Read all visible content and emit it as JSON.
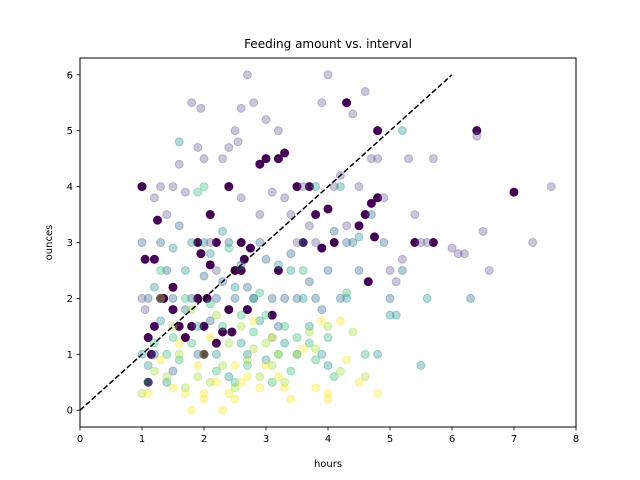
{
  "chart_data": {
    "type": "scatter",
    "title": "Feeding amount vs. interval",
    "xlabel": "hours",
    "ylabel": "ounces",
    "xlim": [
      0,
      8
    ],
    "ylim": [
      -0.3,
      6.3
    ],
    "x_ticks": [
      "0",
      "1",
      "2",
      "3",
      "4",
      "5",
      "6",
      "7",
      "8"
    ],
    "y_ticks": [
      "0",
      "1",
      "2",
      "3",
      "4",
      "5",
      "6"
    ],
    "grid": false,
    "colors": {
      "dark_purple": "#440154",
      "purple_gray": "#6b5a96",
      "teal_blue": "#31688e",
      "teal": "#21918c",
      "green": "#35b779",
      "yellow_green": "#a0da39",
      "yellow": "#fde725",
      "reference_line": "#000000"
    },
    "reference_line": {
      "style": "dashed",
      "x": [
        0,
        6
      ],
      "y": [
        0,
        6
      ]
    },
    "series": [
      {
        "color_key": "dark_purple",
        "alpha": 1.0,
        "points": [
          [
            1.0,
            4.0
          ],
          [
            1.05,
            2.7
          ],
          [
            1.1,
            0.5
          ],
          [
            1.15,
            1.0
          ],
          [
            1.2,
            2.7
          ],
          [
            1.2,
            1.5
          ],
          [
            1.1,
            1.3
          ],
          [
            1.25,
            3.4
          ],
          [
            1.3,
            2.0
          ],
          [
            1.35,
            2.0
          ],
          [
            1.5,
            1.8
          ],
          [
            1.5,
            2.2
          ],
          [
            1.6,
            1.5
          ],
          [
            1.7,
            1.3
          ],
          [
            1.8,
            1.5
          ],
          [
            1.9,
            2.0
          ],
          [
            1.9,
            3.0
          ],
          [
            1.95,
            2.8
          ],
          [
            2.0,
            1.5
          ],
          [
            2.0,
            1.0
          ],
          [
            2.05,
            2.0
          ],
          [
            2.1,
            2.6
          ],
          [
            2.1,
            3.5
          ],
          [
            2.2,
            1.2
          ],
          [
            2.3,
            1.4
          ],
          [
            2.2,
            3.0
          ],
          [
            2.4,
            1.8
          ],
          [
            2.4,
            4.0
          ],
          [
            2.45,
            1.4
          ],
          [
            2.5,
            2.5
          ],
          [
            2.6,
            2.5
          ],
          [
            2.6,
            3.0
          ],
          [
            2.65,
            2.7
          ],
          [
            2.7,
            1.8
          ],
          [
            2.75,
            2.9
          ],
          [
            2.9,
            4.4
          ],
          [
            3.0,
            4.5
          ],
          [
            3.1,
            1.7
          ],
          [
            3.2,
            2.5
          ],
          [
            3.2,
            4.5
          ],
          [
            3.3,
            4.6
          ],
          [
            3.5,
            4.0
          ],
          [
            3.6,
            3.0
          ],
          [
            3.7,
            4.0
          ],
          [
            3.8,
            3.5
          ],
          [
            3.9,
            2.9
          ],
          [
            4.0,
            3.6
          ],
          [
            4.1,
            3.0
          ],
          [
            4.3,
            5.5
          ],
          [
            4.5,
            3.3
          ],
          [
            4.6,
            3.5
          ],
          [
            4.65,
            2.3
          ],
          [
            4.7,
            3.7
          ],
          [
            4.75,
            3.1
          ],
          [
            4.8,
            5.0
          ],
          [
            4.8,
            3.8
          ],
          [
            5.4,
            3.0
          ],
          [
            5.7,
            3.0
          ],
          [
            6.4,
            5.0
          ],
          [
            7.0,
            3.9
          ]
        ]
      },
      {
        "color_key": "purple_gray",
        "alpha": 0.35,
        "points": [
          [
            1.0,
            2.0
          ],
          [
            1.05,
            1.8
          ],
          [
            1.2,
            3.8
          ],
          [
            1.3,
            4.0
          ],
          [
            1.4,
            3.5
          ],
          [
            1.5,
            4.0
          ],
          [
            1.6,
            4.4
          ],
          [
            1.7,
            3.9
          ],
          [
            1.8,
            5.5
          ],
          [
            1.9,
            4.7
          ],
          [
            1.95,
            5.4
          ],
          [
            2.0,
            4.5
          ],
          [
            2.1,
            3.0
          ],
          [
            2.2,
            2.5
          ],
          [
            2.3,
            4.5
          ],
          [
            2.4,
            4.7
          ],
          [
            2.5,
            5.0
          ],
          [
            2.55,
            4.8
          ],
          [
            2.6,
            3.8
          ],
          [
            2.6,
            5.4
          ],
          [
            2.7,
            6.0
          ],
          [
            2.8,
            5.5
          ],
          [
            2.9,
            3.5
          ],
          [
            3.0,
            5.2
          ],
          [
            3.1,
            3.9
          ],
          [
            3.2,
            5.0
          ],
          [
            3.3,
            3.8
          ],
          [
            3.4,
            3.5
          ],
          [
            3.5,
            3.0
          ],
          [
            3.6,
            4.0
          ],
          [
            3.7,
            3.3
          ],
          [
            3.8,
            3.0
          ],
          [
            3.9,
            5.5
          ],
          [
            4.0,
            6.0
          ],
          [
            4.1,
            4.0
          ],
          [
            4.2,
            4.2
          ],
          [
            4.3,
            3.3
          ],
          [
            4.4,
            5.3
          ],
          [
            4.5,
            4.0
          ],
          [
            4.6,
            5.7
          ],
          [
            4.7,
            4.5
          ],
          [
            4.8,
            4.5
          ],
          [
            4.9,
            3.8
          ],
          [
            5.0,
            2.5
          ],
          [
            5.1,
            2.3
          ],
          [
            5.2,
            2.7
          ],
          [
            5.3,
            4.5
          ],
          [
            5.4,
            3.5
          ],
          [
            5.5,
            3.0
          ],
          [
            5.6,
            3.0
          ],
          [
            5.7,
            4.5
          ],
          [
            6.0,
            2.9
          ],
          [
            6.1,
            2.8
          ],
          [
            6.2,
            2.8
          ],
          [
            6.4,
            4.9
          ],
          [
            6.5,
            3.2
          ],
          [
            6.6,
            2.5
          ],
          [
            7.3,
            3.0
          ],
          [
            7.6,
            4.0
          ]
        ]
      },
      {
        "color_key": "teal_blue",
        "alpha": 0.35,
        "points": [
          [
            1.0,
            3.0
          ],
          [
            1.1,
            2.0
          ],
          [
            1.2,
            1.0
          ],
          [
            1.3,
            3.0
          ],
          [
            1.4,
            2.5
          ],
          [
            1.5,
            2.0
          ],
          [
            1.5,
            0.7
          ],
          [
            1.6,
            3.3
          ],
          [
            1.7,
            1.8
          ],
          [
            1.8,
            2.0
          ],
          [
            1.9,
            1.0
          ],
          [
            2.0,
            2.4
          ],
          [
            2.1,
            1.6
          ],
          [
            2.2,
            2.0
          ],
          [
            2.3,
            2.3
          ],
          [
            2.4,
            3.0
          ],
          [
            2.5,
            2.0
          ],
          [
            2.6,
            2.6
          ],
          [
            2.7,
            2.2
          ],
          [
            2.8,
            2.0
          ],
          [
            2.9,
            3.0
          ],
          [
            3.0,
            2.7
          ],
          [
            3.1,
            2.0
          ],
          [
            3.2,
            1.5
          ],
          [
            3.3,
            2.0
          ],
          [
            3.4,
            2.8
          ],
          [
            3.5,
            2.0
          ],
          [
            3.6,
            3.0
          ],
          [
            3.7,
            2.3
          ],
          [
            3.8,
            2.0
          ],
          [
            3.9,
            1.8
          ],
          [
            4.0,
            2.5
          ],
          [
            4.1,
            3.2
          ],
          [
            4.2,
            2.0
          ],
          [
            4.3,
            3.0
          ],
          [
            4.4,
            3.0
          ],
          [
            4.5,
            2.5
          ],
          [
            4.7,
            3.5
          ],
          [
            4.9,
            3.0
          ],
          [
            5.0,
            2.0
          ],
          [
            5.2,
            2.5
          ],
          [
            6.3,
            2.0
          ]
        ]
      },
      {
        "color_key": "teal",
        "alpha": 0.35,
        "points": [
          [
            1.0,
            1.0
          ],
          [
            1.1,
            0.8
          ],
          [
            1.2,
            2.2
          ],
          [
            1.3,
            1.6
          ],
          [
            1.4,
            0.5
          ],
          [
            1.5,
            2.9
          ],
          [
            1.6,
            4.8
          ],
          [
            1.7,
            2.5
          ],
          [
            1.8,
            3.0
          ],
          [
            1.9,
            1.5
          ],
          [
            2.0,
            3.0
          ],
          [
            2.1,
            2.8
          ],
          [
            2.2,
            1.0
          ],
          [
            2.3,
            3.2
          ],
          [
            2.4,
            0.6
          ],
          [
            2.5,
            2.2
          ],
          [
            2.6,
            1.2
          ],
          [
            2.7,
            1.0
          ],
          [
            2.8,
            2.0
          ],
          [
            2.9,
            1.6
          ],
          [
            3.0,
            0.9
          ],
          [
            3.1,
            1.3
          ],
          [
            3.2,
            2.6
          ],
          [
            3.3,
            1.2
          ],
          [
            3.4,
            2.5
          ],
          [
            3.5,
            1.0
          ],
          [
            3.6,
            2.0
          ],
          [
            3.7,
            1.5
          ],
          [
            3.8,
            4.0
          ],
          [
            3.9,
            1.0
          ],
          [
            4.0,
            0.8
          ],
          [
            4.2,
            4.0
          ],
          [
            4.3,
            2.0
          ],
          [
            4.5,
            3.1
          ],
          [
            4.8,
            1.0
          ],
          [
            5.0,
            1.7
          ],
          [
            5.1,
            1.7
          ],
          [
            5.2,
            5.0
          ],
          [
            5.5,
            0.8
          ],
          [
            5.6,
            2.0
          ]
        ]
      },
      {
        "color_key": "green",
        "alpha": 0.35,
        "points": [
          [
            1.1,
            0.5
          ],
          [
            1.2,
            1.2
          ],
          [
            1.3,
            2.5
          ],
          [
            1.4,
            1.0
          ],
          [
            1.5,
            1.3
          ],
          [
            1.6,
            0.9
          ],
          [
            1.7,
            2.0
          ],
          [
            1.8,
            1.2
          ],
          [
            1.9,
            3.9
          ],
          [
            2.0,
            4.0
          ],
          [
            2.1,
            1.9
          ],
          [
            2.2,
            0.7
          ],
          [
            2.3,
            1.5
          ],
          [
            2.4,
            2.9
          ],
          [
            2.5,
            0.5
          ],
          [
            2.6,
            1.7
          ],
          [
            2.7,
            0.8
          ],
          [
            2.8,
            1.4
          ],
          [
            2.9,
            2.1
          ],
          [
            3.0,
            1.7
          ],
          [
            3.1,
            0.5
          ],
          [
            3.2,
            1.0
          ],
          [
            3.3,
            1.5
          ],
          [
            3.4,
            0.7
          ],
          [
            3.5,
            1.3
          ],
          [
            3.6,
            2.5
          ],
          [
            3.7,
            1.2
          ],
          [
            3.8,
            0.9
          ],
          [
            4.0,
            1.3
          ],
          [
            4.1,
            0.6
          ],
          [
            4.3,
            2.1
          ],
          [
            4.6,
            1.0
          ]
        ]
      },
      {
        "color_key": "yellow_green",
        "alpha": 0.35,
        "points": [
          [
            1.0,
            0.3
          ],
          [
            1.2,
            0.7
          ],
          [
            1.3,
            2.0
          ],
          [
            1.4,
            0.6
          ],
          [
            1.5,
            1.5
          ],
          [
            1.6,
            1.0
          ],
          [
            1.7,
            0.4
          ],
          [
            1.8,
            1.8
          ],
          [
            1.9,
            0.6
          ],
          [
            2.0,
            1.0
          ],
          [
            2.1,
            0.5
          ],
          [
            2.2,
            1.7
          ],
          [
            2.3,
            0.8
          ],
          [
            2.4,
            1.2
          ],
          [
            2.5,
            0.4
          ],
          [
            2.6,
            1.5
          ],
          [
            2.7,
            0.9
          ],
          [
            2.8,
            1.1
          ],
          [
            2.9,
            0.6
          ],
          [
            3.0,
            1.2
          ],
          [
            3.1,
            0.8
          ],
          [
            3.2,
            1.0
          ],
          [
            3.3,
            0.5
          ],
          [
            3.5,
            1.0
          ],
          [
            3.7,
            1.4
          ],
          [
            3.8,
            1.1
          ],
          [
            4.0,
            1.5
          ],
          [
            4.2,
            0.7
          ],
          [
            4.4,
            1.4
          ],
          [
            4.6,
            0.6
          ]
        ]
      },
      {
        "color_key": "yellow",
        "alpha": 0.35,
        "points": [
          [
            1.1,
            0.3
          ],
          [
            1.3,
            0.9
          ],
          [
            1.5,
            0.4
          ],
          [
            1.6,
            1.2
          ],
          [
            1.7,
            0.3
          ],
          [
            1.8,
            0.0
          ],
          [
            1.9,
            0.8
          ],
          [
            2.0,
            0.3
          ],
          [
            2.0,
            0.2
          ],
          [
            2.1,
            1.3
          ],
          [
            2.2,
            0.5
          ],
          [
            2.3,
            0.0
          ],
          [
            2.4,
            0.3
          ],
          [
            2.5,
            0.8
          ],
          [
            2.5,
            0.2
          ],
          [
            2.6,
            0.5
          ],
          [
            2.7,
            0.6
          ],
          [
            2.8,
            1.6
          ],
          [
            2.9,
            0.4
          ],
          [
            3.0,
            0.8
          ],
          [
            3.1,
            1.3
          ],
          [
            3.2,
            0.6
          ],
          [
            3.3,
            0.4
          ],
          [
            3.4,
            0.2
          ],
          [
            3.6,
            1.1
          ],
          [
            3.8,
            0.4
          ],
          [
            3.9,
            1.6
          ],
          [
            4.0,
            0.3
          ],
          [
            4.0,
            0.2
          ],
          [
            4.2,
            1.6
          ],
          [
            4.3,
            0.9
          ],
          [
            4.5,
            0.5
          ],
          [
            4.8,
            0.3
          ]
        ]
      }
    ]
  }
}
